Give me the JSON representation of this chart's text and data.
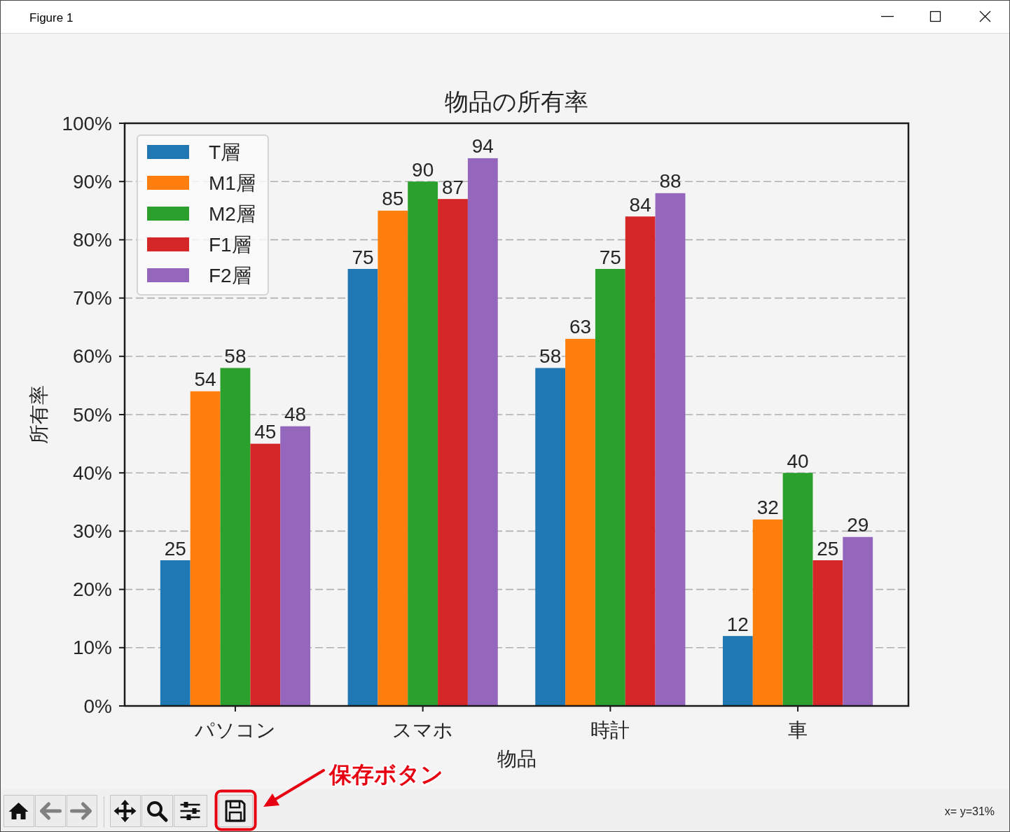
{
  "chart_data": {
    "type": "bar",
    "title": "物品の所有率",
    "xlabel": "物品",
    "ylabel": "所有率",
    "categories": [
      "パソコン",
      "スマホ",
      "時計",
      "車"
    ],
    "series": [
      {
        "name": "T層",
        "color": "#1f77b4",
        "values": [
          25,
          75,
          58,
          12
        ]
      },
      {
        "name": "M1層",
        "color": "#ff7f0e",
        "values": [
          54,
          85,
          63,
          32
        ]
      },
      {
        "name": "M2層",
        "color": "#2ca02c",
        "values": [
          58,
          90,
          75,
          40
        ]
      },
      {
        "name": "F1層",
        "color": "#d62728",
        "values": [
          45,
          87,
          84,
          25
        ]
      },
      {
        "name": "F2層",
        "color": "#9467bd",
        "values": [
          48,
          94,
          88,
          29
        ]
      }
    ],
    "ylim": [
      0,
      100
    ],
    "yticks": [
      {
        "value": 0,
        "label": "0%"
      },
      {
        "value": 10,
        "label": "10%"
      },
      {
        "value": 20,
        "label": "20%"
      },
      {
        "value": 30,
        "label": "30%"
      },
      {
        "value": 40,
        "label": "40%"
      },
      {
        "value": 50,
        "label": "50%"
      },
      {
        "value": 60,
        "label": "60%"
      },
      {
        "value": 70,
        "label": "70%"
      },
      {
        "value": 80,
        "label": "80%"
      },
      {
        "value": 90,
        "label": "90%"
      },
      {
        "value": 100,
        "label": "100%"
      }
    ],
    "grid": "y",
    "legend": "top left",
    "data_labels": true,
    "annotations": [
      "Figure 1",
      "保存ボタン",
      "x= y=31%"
    ]
  }
}
